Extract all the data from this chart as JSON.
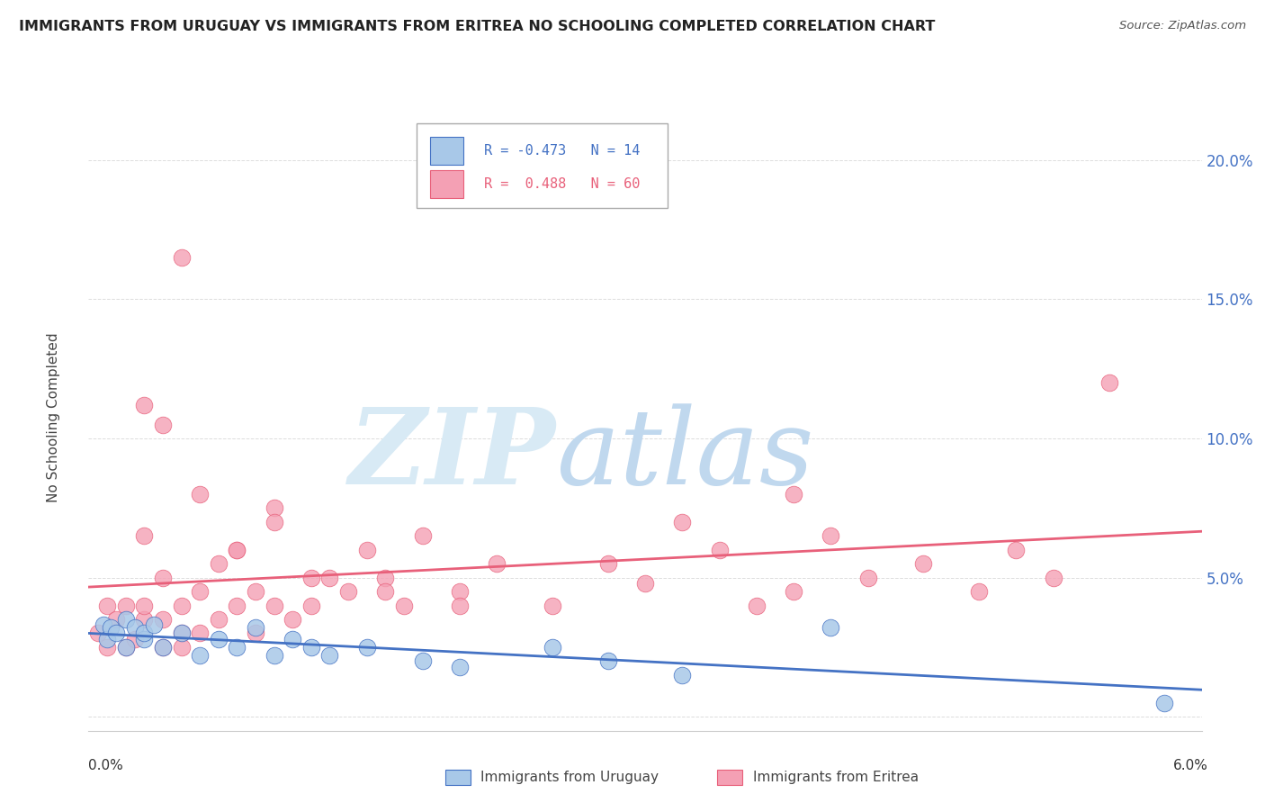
{
  "title": "IMMIGRANTS FROM URUGUAY VS IMMIGRANTS FROM ERITREA NO SCHOOLING COMPLETED CORRELATION CHART",
  "source": "Source: ZipAtlas.com",
  "ylabel": "No Schooling Completed",
  "legend_label1": "Immigrants from Uruguay",
  "legend_label2": "Immigrants from Eritrea",
  "color_uruguay": "#A8C8E8",
  "color_eritrea": "#F4A0B4",
  "line_color_uruguay": "#4472C4",
  "line_color_eritrea": "#E8607A",
  "watermark_zip_color": "#D8EAF5",
  "watermark_atlas_color": "#C0D8EE",
  "background_color": "#FFFFFF",
  "xlim": [
    0.0,
    0.06
  ],
  "ylim": [
    -0.005,
    0.22
  ],
  "yticks": [
    0.0,
    0.05,
    0.1,
    0.15,
    0.2
  ],
  "ytick_labels": [
    "",
    "5.0%",
    "10.0%",
    "15.0%",
    "20.0%"
  ],
  "uruguay_x": [
    0.0008,
    0.001,
    0.0012,
    0.0015,
    0.002,
    0.002,
    0.0025,
    0.003,
    0.003,
    0.0035,
    0.004,
    0.005,
    0.006,
    0.007,
    0.008,
    0.009,
    0.01,
    0.011,
    0.012,
    0.013,
    0.015,
    0.018,
    0.02,
    0.025,
    0.028,
    0.032,
    0.04,
    0.058
  ],
  "uruguay_y": [
    0.033,
    0.028,
    0.032,
    0.03,
    0.025,
    0.035,
    0.032,
    0.028,
    0.03,
    0.033,
    0.025,
    0.03,
    0.022,
    0.028,
    0.025,
    0.032,
    0.022,
    0.028,
    0.025,
    0.022,
    0.025,
    0.02,
    0.018,
    0.025,
    0.02,
    0.015,
    0.032,
    0.005
  ],
  "eritrea_x": [
    0.0005,
    0.001,
    0.001,
    0.0015,
    0.002,
    0.002,
    0.0025,
    0.003,
    0.003,
    0.003,
    0.004,
    0.004,
    0.004,
    0.005,
    0.005,
    0.005,
    0.006,
    0.006,
    0.007,
    0.007,
    0.008,
    0.008,
    0.009,
    0.009,
    0.01,
    0.01,
    0.011,
    0.012,
    0.013,
    0.014,
    0.015,
    0.016,
    0.017,
    0.018,
    0.02,
    0.022,
    0.025,
    0.028,
    0.03,
    0.032,
    0.034,
    0.036,
    0.038,
    0.038,
    0.04,
    0.042,
    0.045,
    0.048,
    0.05,
    0.052,
    0.055,
    0.003,
    0.004,
    0.005,
    0.006,
    0.008,
    0.01,
    0.012,
    0.016,
    0.02
  ],
  "eritrea_y": [
    0.03,
    0.025,
    0.04,
    0.035,
    0.025,
    0.04,
    0.028,
    0.035,
    0.04,
    0.065,
    0.025,
    0.035,
    0.05,
    0.03,
    0.04,
    0.025,
    0.03,
    0.045,
    0.035,
    0.055,
    0.04,
    0.06,
    0.03,
    0.045,
    0.04,
    0.075,
    0.035,
    0.04,
    0.05,
    0.045,
    0.06,
    0.05,
    0.04,
    0.065,
    0.045,
    0.055,
    0.04,
    0.055,
    0.048,
    0.07,
    0.06,
    0.04,
    0.045,
    0.08,
    0.065,
    0.05,
    0.055,
    0.045,
    0.06,
    0.05,
    0.12,
    0.112,
    0.105,
    0.165,
    0.08,
    0.06,
    0.07,
    0.05,
    0.045,
    0.04
  ]
}
